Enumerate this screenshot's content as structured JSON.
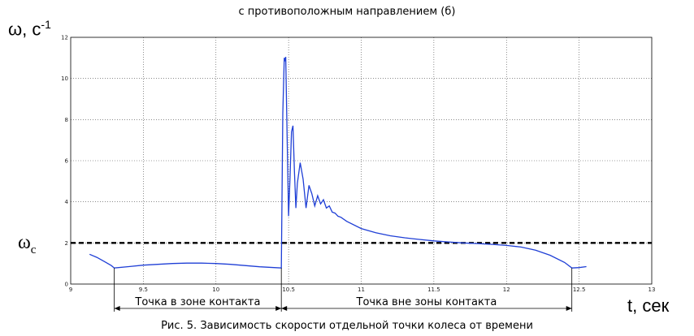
{
  "header": {
    "top_caption": "с противоположным направлением (б)"
  },
  "figure": {
    "caption": "Рис. 5. Зависимость скорости отдельной точки колеса от времени",
    "ylabel_main": "ω, с",
    "ylabel_sup": "-1",
    "omega_c_main": "ω",
    "omega_c_sub": "c",
    "xlabel": "t, сек"
  },
  "chart_data": {
    "type": "line",
    "xlim": [
      9,
      13
    ],
    "ylim": [
      0,
      12
    ],
    "x_ticks": [
      "9",
      "9.5",
      "10",
      "10.5",
      "11",
      "11.5",
      "12",
      "12.5",
      "13"
    ],
    "y_ticks": [
      "0",
      "2",
      "4",
      "6",
      "8",
      "10",
      "12"
    ],
    "grid": true,
    "colors": {
      "series": "#1f3fd6",
      "threshold": "#000000"
    },
    "threshold": {
      "y": 2,
      "style": "dashed"
    },
    "zones": [
      {
        "label": "Точка в зоне контакта",
        "x_start": 9.3,
        "x_end": 10.45
      },
      {
        "label": "Точка вне зоны контакта",
        "x_start": 10.45,
        "x_end": 12.45
      }
    ],
    "series": [
      {
        "x": [
          9.13,
          9.18,
          9.23,
          9.28,
          9.3,
          9.4,
          9.5,
          9.6,
          9.7,
          9.8,
          9.9,
          10.0,
          10.1,
          10.2,
          10.3,
          10.4,
          10.45,
          10.46,
          10.47,
          10.475,
          10.48,
          10.49,
          10.5,
          10.51,
          10.52,
          10.53,
          10.54,
          10.55,
          10.56,
          10.58,
          10.6,
          10.62,
          10.64,
          10.66,
          10.68,
          10.7,
          10.72,
          10.74,
          10.76,
          10.78,
          10.8,
          10.82,
          10.84,
          10.86,
          10.9,
          11.0,
          11.1,
          11.2,
          11.3,
          11.4,
          11.5,
          11.6,
          11.7,
          11.8,
          11.9,
          12.0,
          12.1,
          12.2,
          12.3,
          12.4,
          12.45,
          12.5,
          12.55
        ],
        "y": [
          1.45,
          1.3,
          1.1,
          0.9,
          0.78,
          0.85,
          0.92,
          0.96,
          1.0,
          1.02,
          1.02,
          1.0,
          0.96,
          0.9,
          0.84,
          0.8,
          0.78,
          8.3,
          11.0,
          10.9,
          11.05,
          7.2,
          3.3,
          5.2,
          7.4,
          7.7,
          5.5,
          3.7,
          4.9,
          5.9,
          5.1,
          3.7,
          4.8,
          4.4,
          3.8,
          4.3,
          3.9,
          4.1,
          3.7,
          3.8,
          3.5,
          3.45,
          3.3,
          3.25,
          3.05,
          2.7,
          2.5,
          2.35,
          2.25,
          2.17,
          2.1,
          2.05,
          2.0,
          1.97,
          1.93,
          1.88,
          1.8,
          1.65,
          1.4,
          1.05,
          0.78,
          0.8,
          0.85
        ]
      }
    ]
  }
}
